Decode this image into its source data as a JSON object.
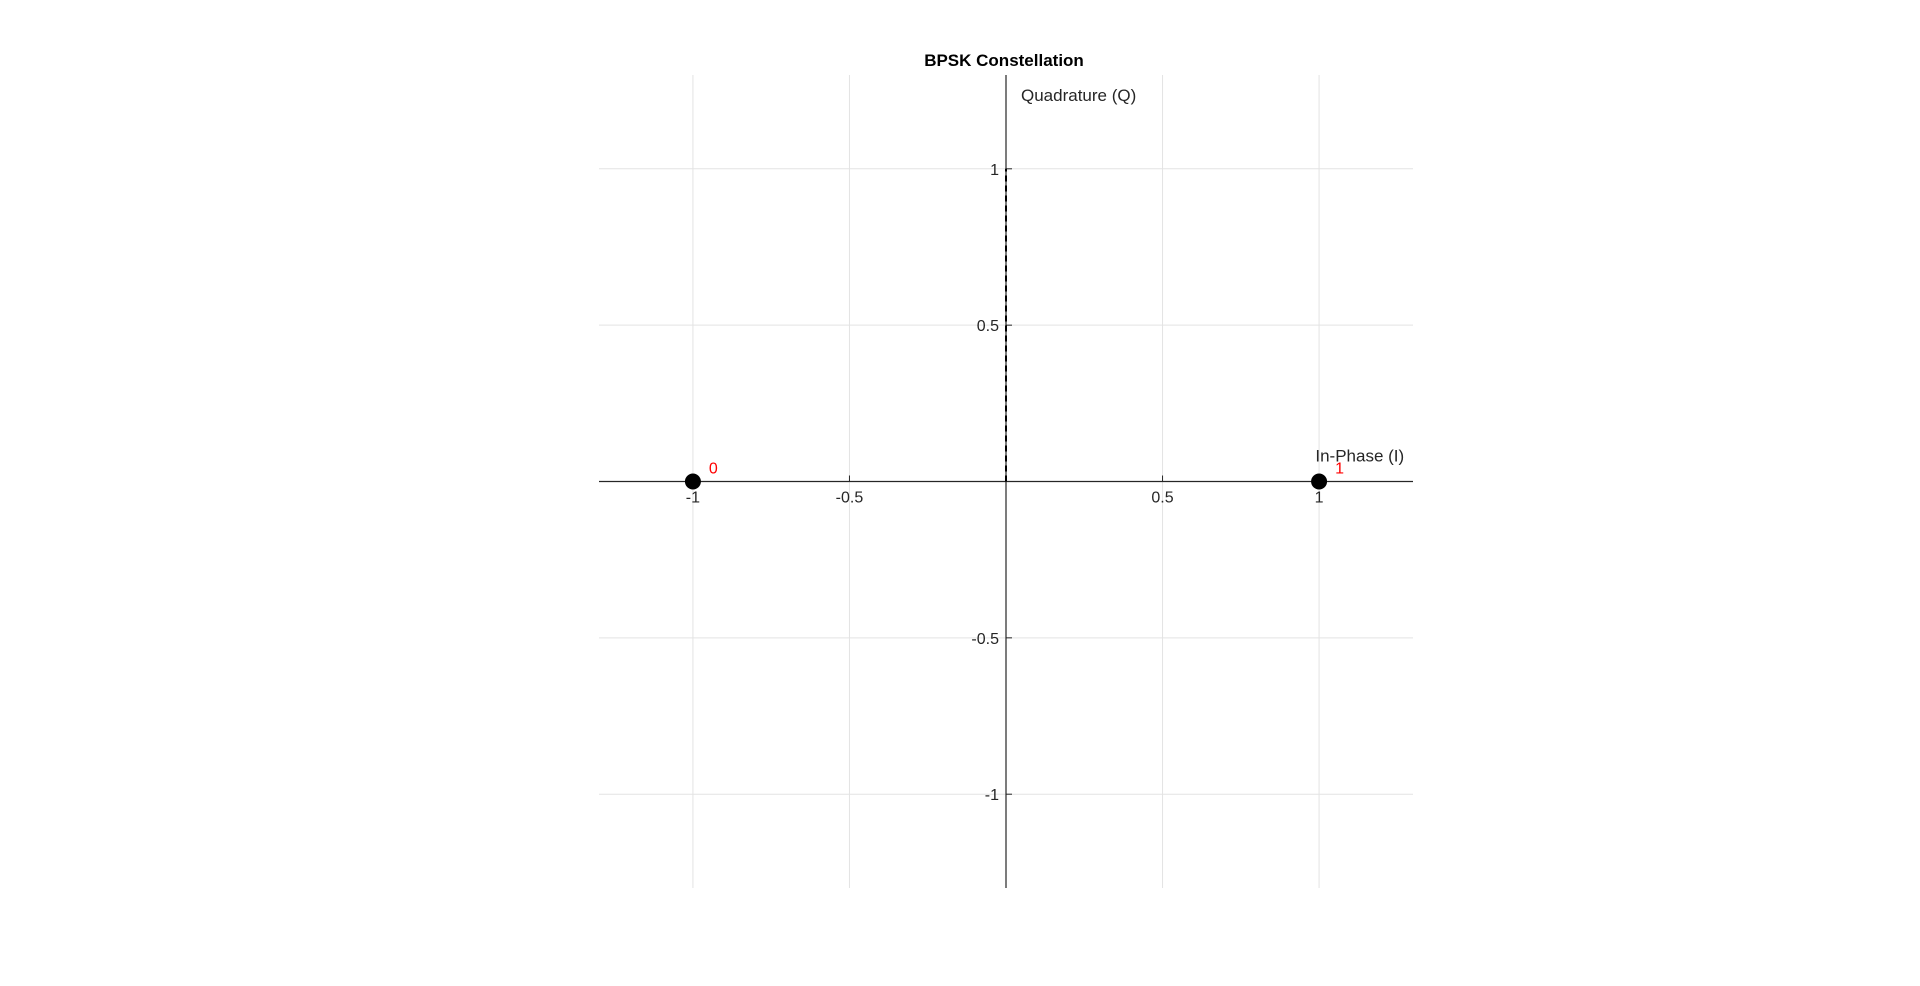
{
  "chart_data": {
    "type": "scatter",
    "title": "BPSK Constellation",
    "xlabel": "In-Phase (I)",
    "ylabel": "Quadrature (Q)",
    "xlim": [
      -1.3,
      1.3
    ],
    "ylim": [
      -1.3,
      1.3
    ],
    "grid": true,
    "axes_through_origin": true,
    "x_ticks": [
      -1,
      -0.5,
      0.5,
      1
    ],
    "x_tick_labels": [
      "-1",
      "-0.5",
      "0.5",
      "1"
    ],
    "y_ticks": [
      1,
      0.5,
      -0.5,
      -1
    ],
    "y_tick_labels": [
      "1",
      "0.5",
      "-0.5",
      "-1"
    ],
    "series": [
      {
        "points": [
          {
            "x": -1,
            "y": 0,
            "label": "0"
          },
          {
            "x": 1,
            "y": 0,
            "label": "1"
          }
        ],
        "marker_color": "#000000",
        "label_color": "#ff0000"
      }
    ],
    "dashed_line": {
      "x1": 0,
      "y1": 0,
      "x2": 0,
      "y2": 1,
      "color": "#000000"
    }
  }
}
